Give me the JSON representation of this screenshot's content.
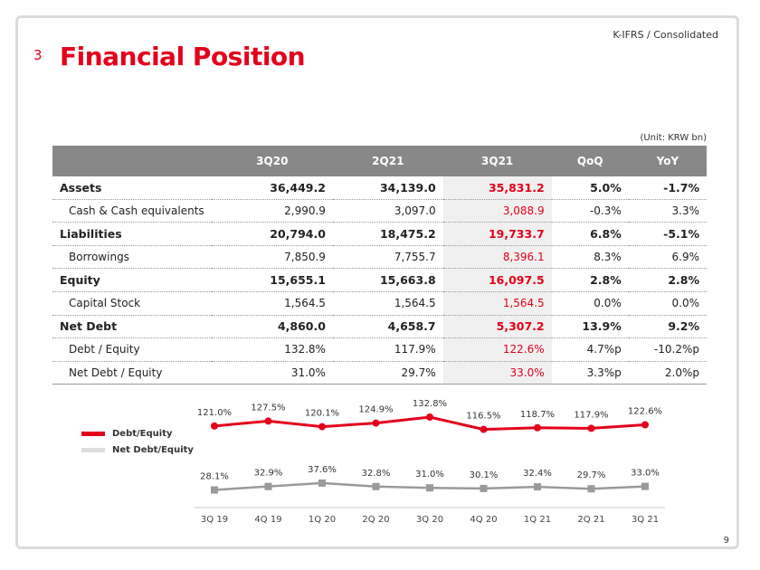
{
  "header": {
    "section_number": "3",
    "title": "Financial Position",
    "standard": "K-IFRS / Consolidated"
  },
  "table": {
    "unit": "(Unit: KRW bn)",
    "columns": [
      "",
      "3Q20",
      "2Q21",
      "3Q21",
      "QoQ",
      "YoY"
    ],
    "rows": [
      {
        "label": "Assets",
        "major": true,
        "values": [
          "36,449.2",
          "34,139.0",
          "35,831.2",
          "5.0%",
          "-1.7%"
        ]
      },
      {
        "label": "Cash & Cash equivalents",
        "major": false,
        "values": [
          "2,990.9",
          "3,097.0",
          "3,088.9",
          "-0.3%",
          "3.3%"
        ]
      },
      {
        "label": "Liabilities",
        "major": true,
        "values": [
          "20,794.0",
          "18,475.2",
          "19,733.7",
          "6.8%",
          "-5.1%"
        ]
      },
      {
        "label": "Borrowings",
        "major": false,
        "values": [
          "7,850.9",
          "7,755.7",
          "8,396.1",
          "8.3%",
          "6.9%"
        ]
      },
      {
        "label": "Equity",
        "major": true,
        "values": [
          "15,655.1",
          "15,663.8",
          "16,097.5",
          "2.8%",
          "2.8%"
        ]
      },
      {
        "label": "Capital Stock",
        "major": false,
        "values": [
          "1,564.5",
          "1,564.5",
          "1,564.5",
          "0.0%",
          "0.0%"
        ]
      },
      {
        "label": "Net Debt",
        "major": true,
        "values": [
          "4,860.0",
          "4,658.7",
          "5,307.2",
          "13.9%",
          "9.2%"
        ]
      },
      {
        "label": "Debt / Equity",
        "major": false,
        "values": [
          "132.8%",
          "117.9%",
          "122.6%",
          "4.7%p",
          "-10.2%p"
        ]
      },
      {
        "label": "Net Debt / Equity",
        "major": false,
        "values": [
          "31.0%",
          "29.7%",
          "33.0%",
          "3.3%p",
          "2.0%p"
        ]
      }
    ]
  },
  "chart_data": {
    "type": "line",
    "categories": [
      "3Q 19",
      "4Q 19",
      "1Q 20",
      "2Q 20",
      "3Q 20",
      "4Q 20",
      "1Q 21",
      "2Q 21",
      "3Q 21"
    ],
    "series": [
      {
        "name": "Debt/Equity",
        "color": "#e3001b",
        "marker": "circle",
        "values": [
          121.0,
          127.5,
          120.1,
          124.9,
          132.8,
          116.5,
          118.7,
          117.9,
          122.6
        ],
        "labels": [
          "121.0%",
          "127.5%",
          "120.1%",
          "124.9%",
          "132.8%",
          "116.5%",
          "118.7%",
          "117.9%",
          "122.6%"
        ]
      },
      {
        "name": "Net Debt/Equity",
        "color": "#9a9a9a",
        "marker": "square",
        "values": [
          28.1,
          32.9,
          37.6,
          32.8,
          31.0,
          30.1,
          32.4,
          29.7,
          33.0
        ],
        "labels": [
          "28.1%",
          "32.9%",
          "37.6%",
          "32.8%",
          "31.0%",
          "30.1%",
          "32.4%",
          "29.7%",
          "33.0%"
        ]
      }
    ],
    "legend_position": "left",
    "grid": false
  },
  "footer": {
    "page_number": "9"
  }
}
